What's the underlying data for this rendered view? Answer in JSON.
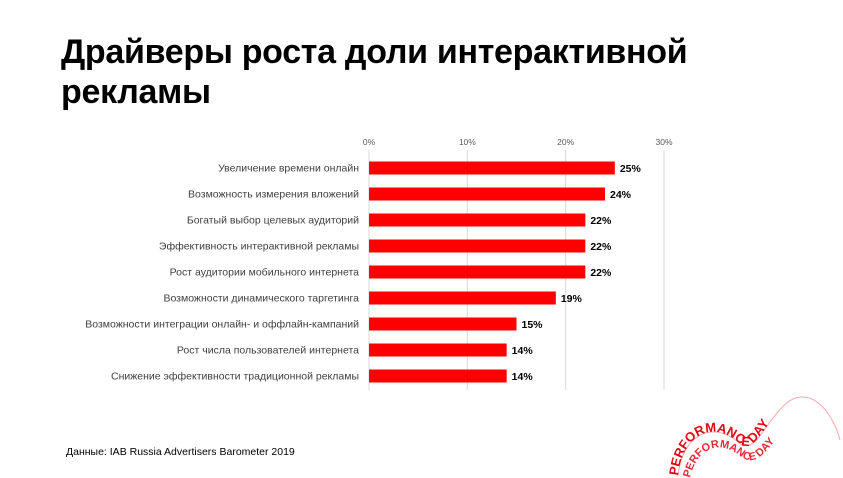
{
  "slide": {
    "title": "Драйверы роста доли интерактивной рекламы",
    "source": "Данные: IAB Russia Advertisers Barometer 2019"
  },
  "chart_data": {
    "type": "bar",
    "orientation": "horizontal",
    "categories": [
      "Увеличение времени онлайн",
      "Возможность измерения вложений",
      "Богатый выбор целевых аудиторий",
      "Эффективность интерактивной рекламы",
      "Рост аудитории мобильного интернета",
      "Возможности динамического таргетинга",
      "Возможности интеграции онлайн- и оффлайн-кампаний",
      "Рост числа пользователей интернета",
      "Снижение эффективности традиционной рекламы"
    ],
    "values": [
      25,
      24,
      22,
      22,
      22,
      19,
      15,
      14,
      14
    ],
    "data_labels": [
      "25%",
      "24%",
      "22%",
      "22%",
      "22%",
      "19%",
      "15%",
      "14%",
      "14%"
    ],
    "xlim": [
      0,
      30
    ],
    "x_ticks": [
      0,
      10,
      20,
      30
    ],
    "x_tick_labels": [
      "0%",
      "10%",
      "20%",
      "30%"
    ],
    "axis_position": "top",
    "grid": true,
    "bar_color": "#ff0000",
    "grid_color": "#d9d9d9"
  },
  "logo": {
    "text": "PERFORMANCE DAY",
    "color": "#e30613"
  }
}
